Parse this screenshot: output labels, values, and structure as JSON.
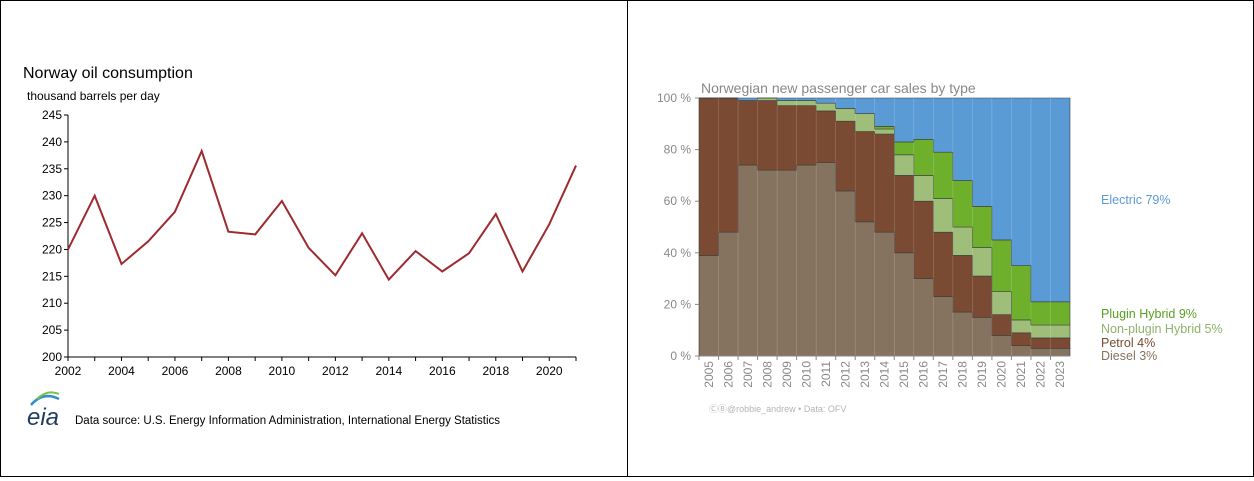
{
  "chart_data": [
    {
      "type": "line",
      "title": "Norway oil consumption",
      "ylabel": "thousand barrels per day",
      "xlim": [
        2002,
        2021
      ],
      "ylim": [
        200,
        245
      ],
      "yticks": [
        200,
        205,
        210,
        215,
        220,
        225,
        230,
        235,
        240,
        245
      ],
      "xticks": [
        2002,
        2004,
        2006,
        2008,
        2010,
        2012,
        2014,
        2016,
        2018,
        2020
      ],
      "grid": false,
      "x": [
        2002,
        2003,
        2004,
        2005,
        2006,
        2007,
        2008,
        2009,
        2010,
        2011,
        2012,
        2013,
        2014,
        2015,
        2016,
        2017,
        2018,
        2019,
        2020,
        2021
      ],
      "values": [
        220.0,
        230.0,
        217.3,
        221.5,
        227.0,
        238.3,
        223.3,
        222.8,
        229.0,
        220.3,
        215.2,
        223.0,
        214.4,
        219.7,
        215.9,
        219.3,
        226.6,
        215.9,
        224.7,
        235.6
      ],
      "line_color": "#9e2a2f",
      "source_logo": "eia",
      "source": "Data source: U.S. Energy Information Administration, International Energy Statistics"
    },
    {
      "type": "area",
      "stacked": true,
      "title": "Norwegian new passenger car sales by type",
      "categories": [
        "2005",
        "2006",
        "2007",
        "2008",
        "2009",
        "2010",
        "2011",
        "2012",
        "2013",
        "2014",
        "2015",
        "2016",
        "2017",
        "2018",
        "2019",
        "2020",
        "2021",
        "2022",
        "2023"
      ],
      "ylim": [
        0,
        100
      ],
      "yticks": [
        "0 %",
        "20 %",
        "40 %",
        "60 %",
        "80 %",
        "100 %"
      ],
      "series": [
        {
          "name": "Diesel 3%",
          "color": "#85735f",
          "values": [
            39,
            48,
            74,
            72,
            72,
            74,
            75,
            64,
            52,
            48,
            40,
            30,
            23,
            17,
            15,
            8,
            4,
            3,
            3
          ]
        },
        {
          "name": "Petrol 4%",
          "color": "#7a4a32",
          "values": [
            61,
            52,
            25,
            27,
            25,
            23,
            20,
            27,
            35,
            38,
            30,
            30,
            25,
            22,
            16,
            8,
            5,
            4,
            4
          ]
        },
        {
          "name": "Non-plugin Hybrid 5%",
          "color": "#9fbe7a",
          "values": [
            0,
            0,
            0,
            1,
            2,
            2,
            3,
            5,
            7,
            2,
            8,
            10,
            13,
            11,
            11,
            9,
            5,
            5,
            5
          ]
        },
        {
          "name": "Plugin Hybrid 9%",
          "color": "#6eb02c",
          "values": [
            0,
            0,
            0,
            0,
            0,
            0,
            0,
            0,
            0,
            1,
            5,
            14,
            18,
            18,
            16,
            20,
            21,
            9,
            9
          ]
        },
        {
          "name": "Electric 79%",
          "color": "#5b9bd5",
          "values": [
            0,
            0,
            1,
            0,
            1,
            1,
            2,
            4,
            6,
            11,
            17,
            16,
            21,
            32,
            42,
            55,
            65,
            79,
            79
          ]
        }
      ],
      "legend_placement": "right",
      "credit": "ⒸⒷ@robbie_andrew  •  Data: OFV"
    }
  ]
}
